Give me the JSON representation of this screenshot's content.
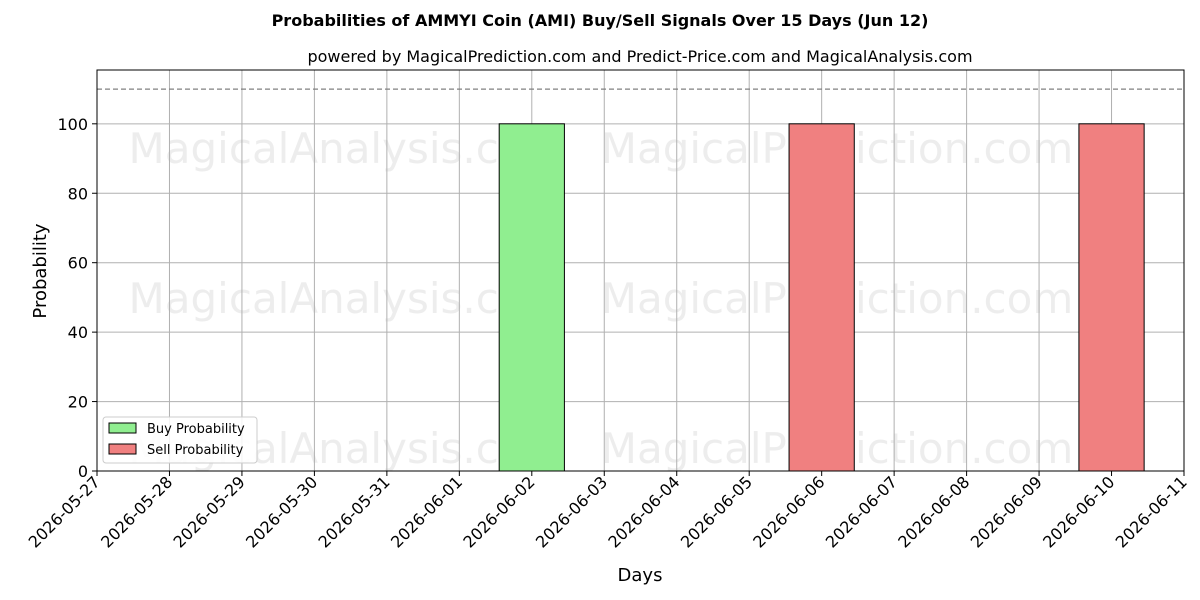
{
  "chart_data": {
    "type": "bar",
    "title": "Probabilities of AMMYI Coin (AMI) Buy/Sell Signals Over 15 Days (Jun 12)",
    "subtitle": "powered by MagicalPrediction.com and Predict-Price.com and MagicalAnalysis.com",
    "xlabel": "Days",
    "ylabel": "Probability",
    "x_ticks": [
      "2026-05-27",
      "2026-05-28",
      "2026-05-29",
      "2026-05-30",
      "2026-05-31",
      "2026-06-01",
      "2026-06-02",
      "2026-06-03",
      "2026-06-04",
      "2026-06-05",
      "2026-06-06",
      "2026-06-07",
      "2026-06-08",
      "2026-06-09",
      "2026-06-10",
      "2026-06-11"
    ],
    "y_ticks": [
      0,
      20,
      40,
      60,
      80,
      100
    ],
    "ylim": [
      0,
      115.5
    ],
    "xlim": [
      "2026-05-27",
      "2026-06-11"
    ],
    "reference_line": 110,
    "grid": true,
    "legend_position": "lower-left",
    "series": [
      {
        "name": "Buy Probability",
        "color": "#90ee90",
        "points": [
          {
            "x": "2026-06-02",
            "y": 100
          }
        ]
      },
      {
        "name": "Sell Probability",
        "color": "#f08080",
        "points": [
          {
            "x": "2026-06-06",
            "y": 100
          },
          {
            "x": "2026-06-10",
            "y": 100
          }
        ]
      }
    ],
    "watermarks": [
      "MagicalAnalysis.com",
      "MagicalPrediction.com"
    ]
  }
}
